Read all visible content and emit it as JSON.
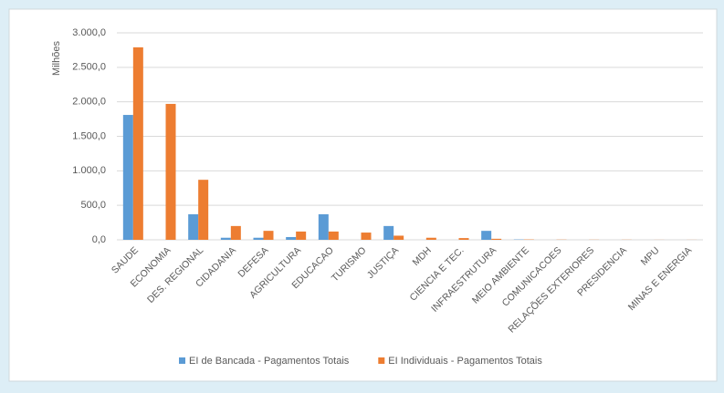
{
  "chart_data": {
    "type": "bar",
    "ylabel": "Milhões",
    "categories": [
      "SAUDE",
      "ECONOMIA",
      "DES. REGIONAL",
      "CIDADANIA",
      "DEFESA",
      "AGRICULTURA",
      "EDUCACAO",
      "TURISMO",
      "JUSTIÇA",
      "MDH",
      "CIENCIA E TEC.",
      "INFRAESTRUTURA",
      "MEIO AMBIENTE",
      "COMUNICACOES",
      "RELAÇÕES EXTERIORES",
      "PRESIDENCIA",
      "MPU",
      "MINAS E ENERGIA"
    ],
    "series": [
      {
        "name": "EI de Bancada - Pagamentos Totais",
        "color": "#5b9bd5",
        "values": [
          1810,
          0,
          370,
          30,
          30,
          40,
          370,
          0,
          200,
          0,
          0,
          130,
          5,
          0,
          0,
          0,
          0,
          0
        ]
      },
      {
        "name": "EI Individuais - Pagamentos Totais",
        "color": "#ed7d31",
        "values": [
          2790,
          1970,
          870,
          200,
          130,
          120,
          120,
          105,
          60,
          30,
          25,
          15,
          5,
          3,
          2,
          2,
          1,
          1
        ]
      }
    ],
    "ylim": [
      0,
      3000
    ],
    "yticks": [
      {
        "value": 0,
        "label": "0,0"
      },
      {
        "value": 500,
        "label": "500,0"
      },
      {
        "value": 1000,
        "label": "1.000,0"
      },
      {
        "value": 1500,
        "label": "1.500,0"
      },
      {
        "value": 2000,
        "label": "2.000,0"
      },
      {
        "value": 2500,
        "label": "2.500,0"
      },
      {
        "value": 3000,
        "label": "3.000,0"
      }
    ],
    "grid": true,
    "legend": "bottom"
  }
}
